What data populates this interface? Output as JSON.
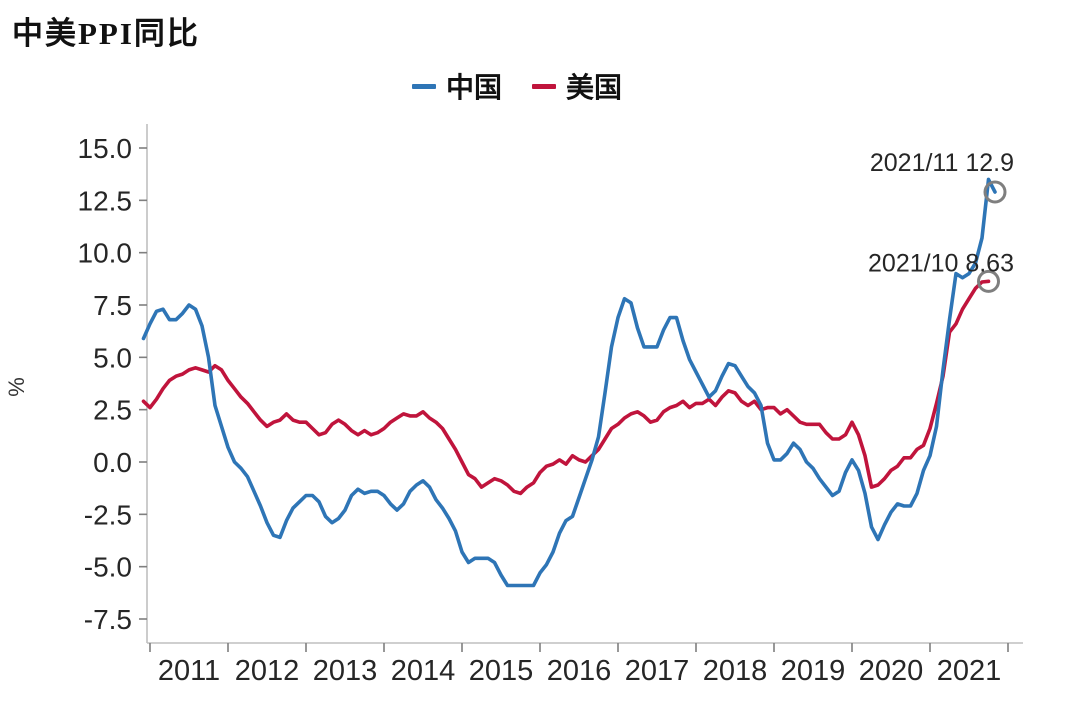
{
  "page": {
    "title": "中美PPI同比"
  },
  "legend": {
    "items": [
      {
        "label": "中国",
        "color": "#2E75B6"
      },
      {
        "label": "美国",
        "color": "#C0143C"
      }
    ]
  },
  "chart_data": {
    "type": "line",
    "title": "中美PPI同比",
    "xlabel": "",
    "ylabel": "%",
    "ylim": [
      -7.5,
      15.0
    ],
    "ytick_step": 2.5,
    "ytick_labels": [
      "15.0",
      "12.5",
      "10.0",
      "7.5",
      "5.0",
      "2.5",
      "0.0",
      "-2.5",
      "-5.0",
      "-7.5"
    ],
    "xtick_labels": [
      "2011",
      "2012",
      "2013",
      "2014",
      "2015",
      "2016",
      "2017",
      "2018",
      "2019",
      "2020",
      "2021"
    ],
    "grid": false,
    "legend_position": "top-center",
    "x_start_month": "2010-12",
    "x_frequency": "monthly",
    "axis_color": "#BFBFBF",
    "tick_color": "#7F7F7F",
    "label_color": "#262626",
    "series": [
      {
        "name": "中国",
        "color": "#2E75B6",
        "values": [
          5.9,
          6.6,
          7.2,
          7.3,
          6.8,
          6.8,
          7.1,
          7.5,
          7.3,
          6.5,
          5.0,
          2.7,
          1.7,
          0.7,
          0.0,
          -0.3,
          -0.7,
          -1.4,
          -2.1,
          -2.9,
          -3.5,
          -3.6,
          -2.8,
          -2.2,
          -1.9,
          -1.6,
          -1.6,
          -1.9,
          -2.6,
          -2.9,
          -2.7,
          -2.3,
          -1.6,
          -1.3,
          -1.5,
          -1.4,
          -1.4,
          -1.6,
          -2.0,
          -2.3,
          -2.0,
          -1.4,
          -1.1,
          -0.9,
          -1.2,
          -1.8,
          -2.2,
          -2.7,
          -3.3,
          -4.3,
          -4.8,
          -4.6,
          -4.6,
          -4.6,
          -4.8,
          -5.4,
          -5.9,
          -5.9,
          -5.9,
          -5.9,
          -5.9,
          -5.3,
          -4.9,
          -4.3,
          -3.4,
          -2.8,
          -2.6,
          -1.7,
          -0.8,
          0.1,
          1.2,
          3.3,
          5.5,
          6.9,
          7.8,
          7.6,
          6.4,
          5.5,
          5.5,
          5.5,
          6.3,
          6.9,
          6.9,
          5.8,
          4.9,
          4.3,
          3.7,
          3.1,
          3.4,
          4.1,
          4.7,
          4.6,
          4.1,
          3.6,
          3.3,
          2.7,
          0.9,
          0.1,
          0.1,
          0.4,
          0.9,
          0.6,
          0.0,
          -0.3,
          -0.8,
          -1.2,
          -1.6,
          -1.4,
          -0.5,
          0.1,
          -0.4,
          -1.5,
          -3.1,
          -3.7,
          -3.0,
          -2.4,
          -2.0,
          -2.1,
          -2.1,
          -1.5,
          -0.4,
          0.3,
          1.7,
          4.4,
          6.8,
          9.0,
          8.8,
          9.0,
          9.5,
          10.7,
          13.5,
          12.9
        ]
      },
      {
        "name": "美国",
        "color": "#C0143C",
        "values": [
          2.9,
          2.6,
          3.0,
          3.5,
          3.9,
          4.1,
          4.2,
          4.4,
          4.5,
          4.4,
          4.3,
          4.6,
          4.4,
          3.9,
          3.5,
          3.1,
          2.8,
          2.4,
          2.0,
          1.7,
          1.9,
          2.0,
          2.3,
          2.0,
          1.9,
          1.9,
          1.6,
          1.3,
          1.4,
          1.8,
          2.0,
          1.8,
          1.5,
          1.3,
          1.5,
          1.3,
          1.4,
          1.6,
          1.9,
          2.1,
          2.3,
          2.2,
          2.2,
          2.4,
          2.1,
          1.9,
          1.6,
          1.1,
          0.6,
          0.0,
          -0.6,
          -0.8,
          -1.2,
          -1.0,
          -0.8,
          -0.9,
          -1.1,
          -1.4,
          -1.5,
          -1.2,
          -1.0,
          -0.5,
          -0.2,
          -0.1,
          0.1,
          -0.1,
          0.3,
          0.1,
          0.0,
          0.3,
          0.6,
          1.1,
          1.6,
          1.8,
          2.1,
          2.3,
          2.4,
          2.2,
          1.9,
          2.0,
          2.4,
          2.6,
          2.7,
          2.9,
          2.6,
          2.8,
          2.8,
          3.0,
          2.7,
          3.1,
          3.4,
          3.3,
          2.9,
          2.7,
          2.9,
          2.5,
          2.6,
          2.6,
          2.3,
          2.5,
          2.2,
          1.9,
          1.8,
          1.8,
          1.8,
          1.4,
          1.1,
          1.1,
          1.3,
          1.9,
          1.3,
          0.3,
          -1.2,
          -1.1,
          -0.8,
          -0.4,
          -0.2,
          0.2,
          0.2,
          0.6,
          0.8,
          1.6,
          2.8,
          4.1,
          6.2,
          6.6,
          7.3,
          7.8,
          8.3,
          8.6,
          8.63
        ]
      }
    ],
    "annotations": [
      {
        "label": "2021/11 12.9",
        "series_index": 0,
        "month_index": 131,
        "value": 12.9,
        "marker": "open-circle",
        "marker_color": "#7F7F7F"
      },
      {
        "label": "2021/10 8.63",
        "series_index": 1,
        "month_index": 130,
        "value": 8.63,
        "marker": "open-circle",
        "marker_color": "#7F7F7F"
      }
    ]
  }
}
